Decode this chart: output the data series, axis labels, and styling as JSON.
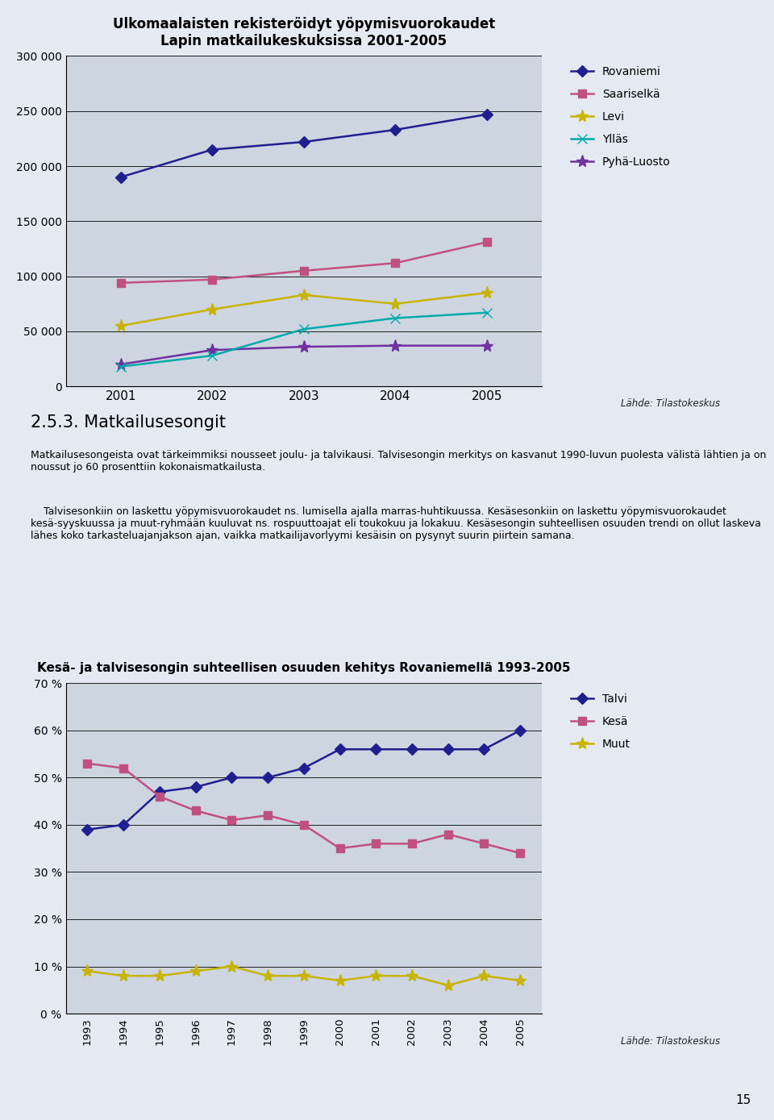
{
  "chart1": {
    "title": "Ulkomaalaisten rekisteröidyt yöpymisvuorokaudet\nLapin matkailukeskuksissa 2001-2005",
    "years": [
      2001,
      2002,
      2003,
      2004,
      2005
    ],
    "series_order": [
      "Rovaniemi",
      "Saariselkä",
      "Levi",
      "Ylläs",
      "Pyhä-Luosto"
    ],
    "series": {
      "Rovaniemi": {
        "values": [
          190000,
          215000,
          222000,
          233000,
          247000
        ],
        "color": "#1F1F8F",
        "marker": "D",
        "markersize": 7,
        "zorder": 5
      },
      "Saariselkä": {
        "values": [
          94000,
          97000,
          105000,
          112000,
          131000
        ],
        "color": "#C05080",
        "marker": "s",
        "markersize": 7,
        "zorder": 4
      },
      "Levi": {
        "values": [
          55000,
          70000,
          83000,
          75000,
          85000
        ],
        "color": "#C8B400",
        "marker": "*",
        "markersize": 11,
        "zorder": 3
      },
      "Ylläs": {
        "values": [
          18000,
          28000,
          52000,
          62000,
          67000
        ],
        "color": "#00AAAA",
        "marker": "x",
        "markersize": 9,
        "zorder": 2
      },
      "Pyhä-Luosto": {
        "values": [
          20000,
          33000,
          36000,
          37000,
          37000
        ],
        "color": "#7030A0",
        "marker": "*",
        "markersize": 11,
        "zorder": 1
      }
    },
    "ylim": [
      0,
      300000
    ],
    "yticks": [
      0,
      50000,
      100000,
      150000,
      200000,
      250000,
      300000
    ],
    "bg_color": "#CDD5E0",
    "source": "Lähde: Tilastokeskus"
  },
  "text_section": {
    "heading": "2.5.3. Matkailusesongit",
    "line1": "Matkailusesongeista ovat tärkeimmiksi nousseet joulu- ja talvikausi. Talvisesongin merkitys on kasvanut 1990-luvun puolesta välistä lähtien ja on noussut jo 60 prosenttiin kokonaismatkailusta.",
    "line2": "    Talvisesonkiin on laskettu yöpymisvuorokaudet ns. lumisella ajalla marras-huhtikuussa. Kesäsesonkiin on laskettu yöpymisvuorokaudet kesä-syyskuussa ja muut-ryhmään kuuluvat ns. rospuuttoajat eli toukokuu ja lokakuu. Kesäsesongin suhteellisen osuuden trendi on ollut laskeva lähes koko tarkasteluajanjakson ajan, vaikka matkailijavorlyymi kesäisin on pysynyt suurin piirtein samana."
  },
  "chart2": {
    "title": "Kesä- ja talvisesongin suhteellisen osuuden kehitys Rovaniemellä 1993-2005",
    "years": [
      1993,
      1994,
      1995,
      1996,
      1997,
      1998,
      1999,
      2000,
      2001,
      2002,
      2003,
      2004,
      2005
    ],
    "series_order": [
      "Talvi",
      "Kesä",
      "Muut"
    ],
    "series": {
      "Talvi": {
        "values": [
          0.39,
          0.4,
          0.47,
          0.48,
          0.5,
          0.5,
          0.52,
          0.56,
          0.56,
          0.56,
          0.56,
          0.56,
          0.6
        ],
        "color": "#1F1F8F",
        "marker": "D",
        "markersize": 7
      },
      "Kesä": {
        "values": [
          0.53,
          0.52,
          0.46,
          0.43,
          0.41,
          0.42,
          0.4,
          0.35,
          0.36,
          0.36,
          0.38,
          0.36,
          0.34
        ],
        "color": "#C05080",
        "marker": "s",
        "markersize": 7
      },
      "Muut": {
        "values": [
          0.09,
          0.08,
          0.08,
          0.09,
          0.1,
          0.08,
          0.08,
          0.07,
          0.08,
          0.08,
          0.06,
          0.08,
          0.07
        ],
        "color": "#C8B400",
        "marker": "*",
        "markersize": 11
      }
    },
    "ylim": [
      0,
      0.7
    ],
    "yticks": [
      0.0,
      0.1,
      0.2,
      0.3,
      0.4,
      0.5,
      0.6,
      0.7
    ],
    "ytick_labels": [
      "0 %",
      "10 %",
      "20 %",
      "30 %",
      "40 %",
      "50 %",
      "60 %",
      "70 %"
    ],
    "bg_color": "#CDD5E0",
    "source": "Lähde: Tilastokeskus"
  },
  "page_number": "15",
  "page_bg": "#E4E9F2"
}
